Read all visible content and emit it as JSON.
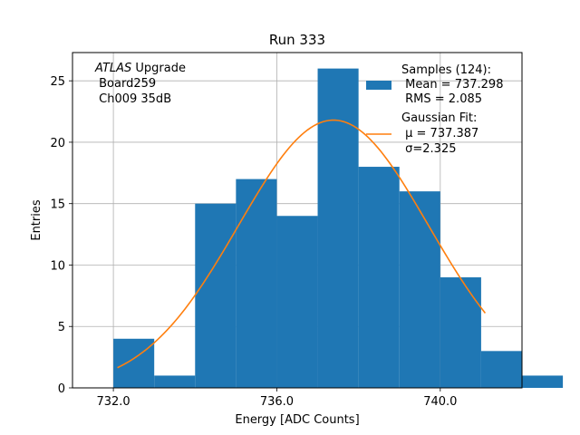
{
  "chart_data": {
    "type": "bar",
    "title": "Run 333",
    "xlabel": "Energy [ADC Counts]",
    "ylabel": "Entries",
    "xlim": [
      731.0,
      742.0
    ],
    "ylim": [
      0,
      27.3
    ],
    "grid": true,
    "x_ticks": [
      732.0,
      736.0,
      740.0
    ],
    "x_tick_labels": [
      "732.0",
      "736.0",
      "740.0"
    ],
    "y_ticks": [
      0,
      5,
      10,
      15,
      20,
      25
    ],
    "y_tick_labels": [
      "0",
      "5",
      "10",
      "15",
      "20",
      "25"
    ],
    "bins": [
      {
        "x0": 732.0,
        "x1": 733.0,
        "count": 4
      },
      {
        "x0": 733.0,
        "x1": 734.0,
        "count": 1
      },
      {
        "x0": 734.0,
        "x1": 735.0,
        "count": 15
      },
      {
        "x0": 735.0,
        "x1": 736.0,
        "count": 17
      },
      {
        "x0": 736.0,
        "x1": 737.0,
        "count": 14
      },
      {
        "x0": 737.0,
        "x1": 738.0,
        "count": 26
      },
      {
        "x0": 738.0,
        "x1": 739.0,
        "count": 18
      },
      {
        "x0": 739.0,
        "x1": 740.0,
        "count": 16
      },
      {
        "x0": 740.0,
        "x1": 741.0,
        "count": 9
      },
      {
        "x0": 741.0,
        "x1": 742.0,
        "count": 3
      },
      {
        "x0": 742.0,
        "x1": 743.0,
        "count": 1
      }
    ],
    "fit": {
      "name": "Gaussian Fit",
      "mu": 737.387,
      "sigma": 2.325,
      "amplitude": 21.8,
      "x_range": [
        732.1,
        741.1
      ]
    },
    "bar_color": "#1f77b4",
    "fit_color": "#ff7f0e",
    "legend_position": "upper right",
    "legend": {
      "samples_line1": "Samples (124):",
      "samples_line2": " Mean = 737.298",
      "samples_line3": " RMS = 2.085",
      "fit_line1": "Gaussian Fit:",
      "fit_line2": " μ = 737.387",
      "fit_line3": " σ=2.325"
    },
    "annotation": {
      "line1_italic": "ATLAS",
      "line1_rest": " Upgrade",
      "line2": " Board259",
      "line3": " Ch009 35dB"
    }
  }
}
